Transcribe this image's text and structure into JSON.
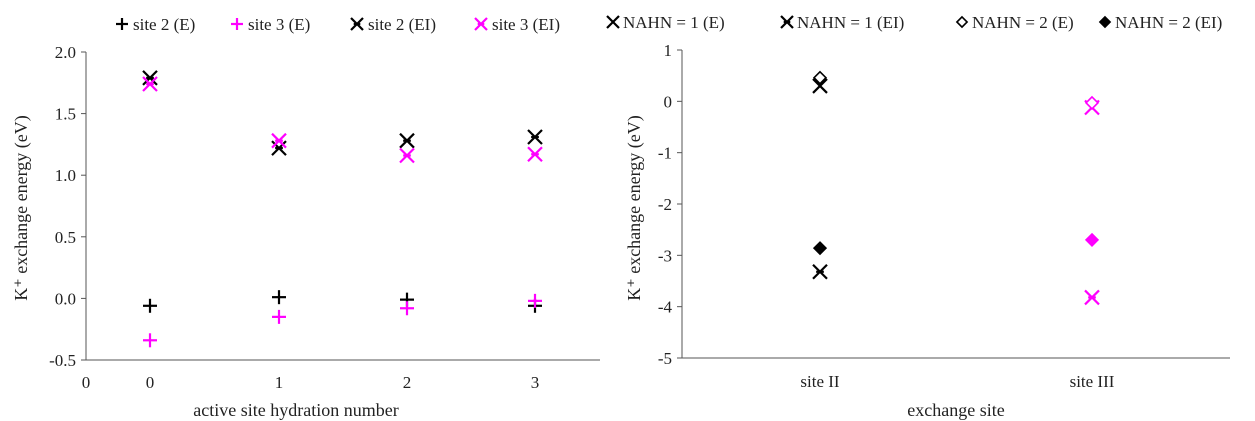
{
  "chart_data": [
    {
      "type": "scatter",
      "xlabel": "active site hydration number",
      "ylabel": "K⁺ exchange energy (eV)",
      "x_ticks": [
        "0",
        "0",
        "1",
        "2",
        "3"
      ],
      "y_ticks": [
        "-0.5",
        "0.0",
        "0.5",
        "1.0",
        "1.5",
        "2.0"
      ],
      "ylim": [
        -0.5,
        2.0
      ],
      "x": [
        0,
        1,
        2,
        3
      ],
      "legend_position": "top",
      "grid": false,
      "series": [
        {
          "name": "site 2 (E)",
          "marker": "plus",
          "color": "#000000",
          "values": [
            -0.06,
            0.01,
            -0.01,
            -0.06
          ]
        },
        {
          "name": "site 3 (E)",
          "marker": "plus",
          "color": "#ff00ff",
          "values": [
            -0.34,
            -0.15,
            -0.08,
            -0.02
          ]
        },
        {
          "name": "site 2 (EI)",
          "marker": "asterisk",
          "color": "#000000",
          "values": [
            1.79,
            1.22,
            1.28,
            1.31
          ]
        },
        {
          "name": "site 3 (EI)",
          "marker": "asterisk",
          "color": "#ff00ff",
          "values": [
            1.74,
            1.28,
            1.16,
            1.17
          ]
        }
      ]
    },
    {
      "type": "scatter",
      "xlabel": "exchange site",
      "ylabel": "K⁺ exchange energy (eV)",
      "categories": [
        "site II",
        "site III"
      ],
      "y_ticks": [
        "-5",
        "-4",
        "-3",
        "-2",
        "-1",
        "0",
        "1"
      ],
      "ylim": [
        -5,
        1
      ],
      "legend_position": "top",
      "grid": false,
      "series": [
        {
          "name": "NAHN = 1 (E)",
          "marker": "x",
          "colors": [
            "#000000",
            "#ff00ff"
          ],
          "values": [
            0.3,
            -0.12
          ]
        },
        {
          "name": "NAHN = 1 (EI)",
          "marker": "asterisk",
          "colors": [
            "#000000",
            "#ff00ff"
          ],
          "values": [
            -3.32,
            -3.82
          ]
        },
        {
          "name": "NAHN = 2 (E)",
          "marker": "diamond-open",
          "colors": [
            "#000000",
            "#ff00ff"
          ],
          "values": [
            0.46,
            -0.03
          ]
        },
        {
          "name": "NAHN = 2 (EI)",
          "marker": "diamond-filled",
          "colors": [
            "#000000",
            "#ff00ff"
          ],
          "values": [
            -2.86,
            -2.7
          ]
        }
      ]
    }
  ]
}
